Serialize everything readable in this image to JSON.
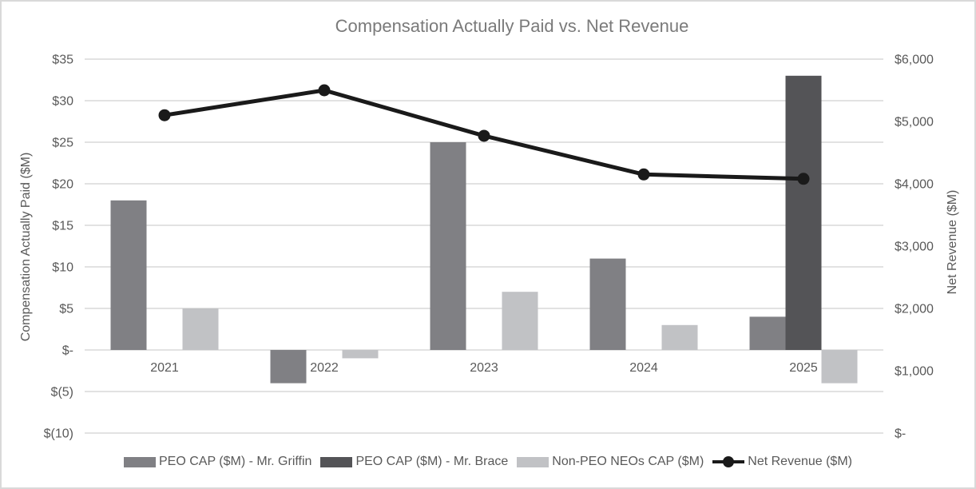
{
  "window": {
    "background": "#ffffff",
    "border_color": "#d9d9d9"
  },
  "style": {
    "title_color": "#7a7a7a",
    "axis_text_color": "#595959",
    "gridline_color": "#d9d9d9"
  },
  "chart_data": {
    "type": "combo-bar-line",
    "title": "Compensation Actually Paid vs. Net Revenue",
    "categories": [
      "2021",
      "2022",
      "2023",
      "2024",
      "2025"
    ],
    "series": [
      {
        "name": "PEO CAP ($M) - Mr. Griffin",
        "chart_type": "bar",
        "axis": "left",
        "color": "#808084",
        "values": [
          18,
          -4,
          25,
          11,
          4
        ]
      },
      {
        "name": "PEO CAP ($M) - Mr. Brace",
        "chart_type": "bar",
        "axis": "left",
        "color": "#545457",
        "values": [
          0,
          0,
          0,
          0,
          33
        ]
      },
      {
        "name": "Non-PEO NEOs CAP ($M)",
        "chart_type": "bar",
        "axis": "left",
        "color": "#c1c2c5",
        "values": [
          5,
          -1,
          7,
          3,
          -4
        ]
      },
      {
        "name": "Net Revenue ($M)",
        "chart_type": "line",
        "axis": "right",
        "color": "#1a1a1a",
        "values": [
          5100,
          5500,
          4770,
          4150,
          4080
        ]
      }
    ],
    "left_axis": {
      "label": "Compensation Actually Paid ($M)",
      "min": -10,
      "max": 35,
      "step": 5,
      "tick_values": [
        35,
        30,
        25,
        20,
        15,
        10,
        5,
        0,
        -5,
        -10
      ],
      "tick_labels": [
        "$35",
        "$30",
        "$25",
        "$20",
        "$15",
        "$10",
        "$5",
        "$-",
        "$(5)",
        "$(10)"
      ]
    },
    "right_axis": {
      "label": "Net Revenue ($M)",
      "min": 0,
      "max": 6000,
      "step": 1000,
      "tick_values": [
        6000,
        5000,
        4000,
        3000,
        2000,
        1000,
        0
      ],
      "tick_labels": [
        "$6,000",
        "$5,000",
        "$4,000",
        "$3,000",
        "$2,000",
        "$1,000",
        "$-"
      ]
    },
    "grid": true,
    "legend_position": "bottom"
  }
}
